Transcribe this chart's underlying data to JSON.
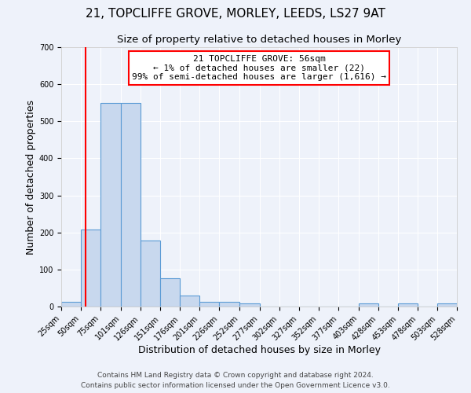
{
  "title": "21, TOPCLIFFE GROVE, MORLEY, LEEDS, LS27 9AT",
  "subtitle": "Size of property relative to detached houses in Morley",
  "xlabel": "Distribution of detached houses by size in Morley",
  "ylabel": "Number of detached properties",
  "bin_edges": [
    25,
    50,
    75,
    101,
    126,
    151,
    176,
    201,
    226,
    252,
    277,
    302,
    327,
    352,
    377,
    403,
    428,
    453,
    478,
    503,
    528
  ],
  "bar_heights": [
    12,
    207,
    550,
    550,
    178,
    77,
    30,
    12,
    12,
    8,
    0,
    0,
    0,
    0,
    0,
    8,
    0,
    8,
    0,
    8
  ],
  "bar_color": "#c8d8ee",
  "bar_edgecolor": "#5b9bd5",
  "ylim": [
    0,
    700
  ],
  "yticks": [
    0,
    100,
    200,
    300,
    400,
    500,
    600,
    700
  ],
  "red_line_x": 56,
  "annotation_title": "21 TOPCLIFFE GROVE: 56sqm",
  "annotation_line1": "← 1% of detached houses are smaller (22)",
  "annotation_line2": "99% of semi-detached houses are larger (1,616) →",
  "footnote1": "Contains HM Land Registry data © Crown copyright and database right 2024.",
  "footnote2": "Contains public sector information licensed under the Open Government Licence v3.0.",
  "tick_labels": [
    "25sqm",
    "50sqm",
    "75sqm",
    "101sqm",
    "126sqm",
    "151sqm",
    "176sqm",
    "201sqm",
    "226sqm",
    "252sqm",
    "277sqm",
    "302sqm",
    "327sqm",
    "352sqm",
    "377sqm",
    "403sqm",
    "428sqm",
    "453sqm",
    "478sqm",
    "503sqm",
    "528sqm"
  ],
  "background_color": "#eef2fa",
  "plot_bg_color": "#eef2fa",
  "grid_color": "#ffffff",
  "title_fontsize": 11,
  "subtitle_fontsize": 9.5,
  "axis_label_fontsize": 9,
  "tick_fontsize": 7,
  "annotation_fontsize": 8,
  "footnote_fontsize": 6.5
}
